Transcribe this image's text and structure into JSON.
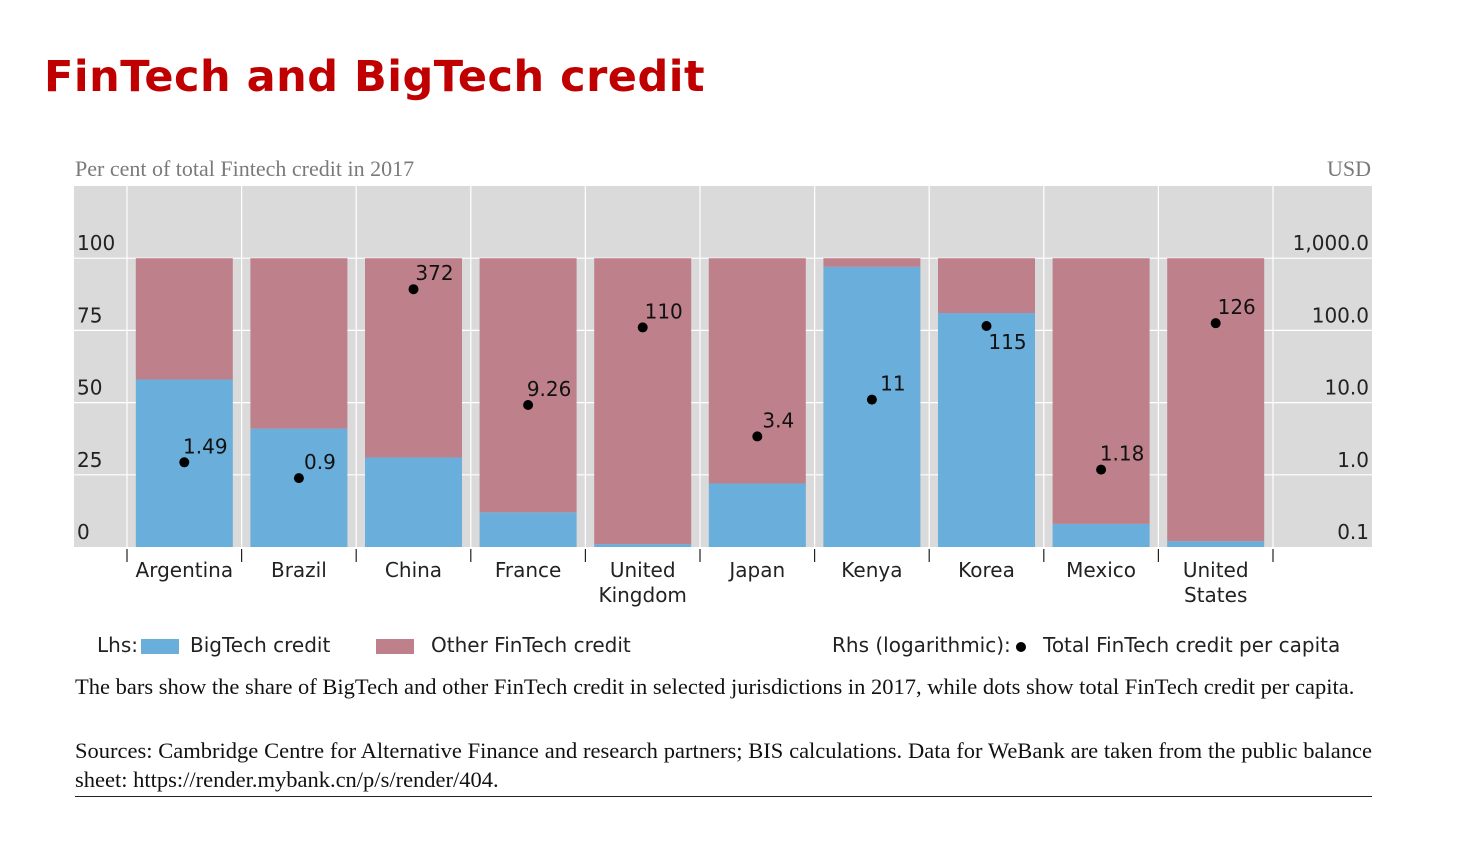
{
  "slide": {
    "title": "FinTech and BigTech credit"
  },
  "chart_data": {
    "type": "bar",
    "stacked": true,
    "subtitle_left": "Per cent of total Fintech credit in 2017",
    "unit_right": "USD",
    "categories": [
      "Argentina",
      "Brazil",
      "China",
      "France",
      "United Kingdom",
      "Japan",
      "Kenya",
      "Korea",
      "Mexico",
      "United States"
    ],
    "category_lines": [
      [
        "Argentina"
      ],
      [
        "Brazil"
      ],
      [
        "China"
      ],
      [
        "France"
      ],
      [
        "United",
        "Kingdom"
      ],
      [
        "Japan"
      ],
      [
        "Kenya"
      ],
      [
        "Korea"
      ],
      [
        "Mexico"
      ],
      [
        "United",
        "States"
      ]
    ],
    "series": [
      {
        "name": "BigTech credit",
        "axis": "left",
        "color": "#6aaedb",
        "values": [
          58,
          41,
          31,
          12,
          1,
          22,
          97,
          81,
          8,
          2
        ]
      },
      {
        "name": "Other FinTech credit",
        "axis": "left",
        "color": "#be818b",
        "values": [
          42,
          59,
          69,
          88,
          99,
          78,
          3,
          19,
          92,
          98
        ]
      }
    ],
    "dots": {
      "name": "Total FinTech credit per capita",
      "axis": "right",
      "values": [
        1.49,
        0.9,
        372,
        9.26,
        110,
        3.4,
        11,
        115,
        1.18,
        126
      ],
      "labels": [
        "1.49",
        "0.9",
        "372",
        "9.26",
        "110",
        "3.4",
        "11",
        "115",
        "1.18",
        "126"
      ]
    },
    "y_left": {
      "range": [
        0,
        125
      ],
      "ticks": [
        0,
        25,
        50,
        75,
        100
      ],
      "tick_labels": [
        "0",
        "25",
        "50",
        "75",
        "100"
      ]
    },
    "y_right": {
      "scale": "log",
      "range": [
        0.1,
        10000
      ],
      "ticks": [
        0.1,
        1,
        10,
        100,
        1000
      ],
      "tick_labels": [
        "0.1",
        "1.0",
        "10.0",
        "100.0",
        "1,000.0"
      ]
    },
    "grid": true,
    "legend": {
      "lhs_label": "Lhs:",
      "rhs_label": "Rhs (logarithmic):",
      "bigtech": "BigTech credit",
      "other": "Other FinTech credit",
      "dots": "Total FinTech credit per capita"
    },
    "colors": {
      "plot_bg": "#dadada",
      "grid": "#ffffff",
      "bigtech": "#6aaedb",
      "other": "#be818b"
    }
  },
  "notes": {
    "description": "The bars show the share of BigTech and other FinTech credit in selected jurisdictions in 2017, while dots show total FinTech credit per capita.",
    "sources": "Sources: Cambridge Centre for Alternative Finance and research partners; BIS calculations. Data for WeBank are taken from the public balance sheet: https://render.mybank.cn/p/s/render/404."
  }
}
